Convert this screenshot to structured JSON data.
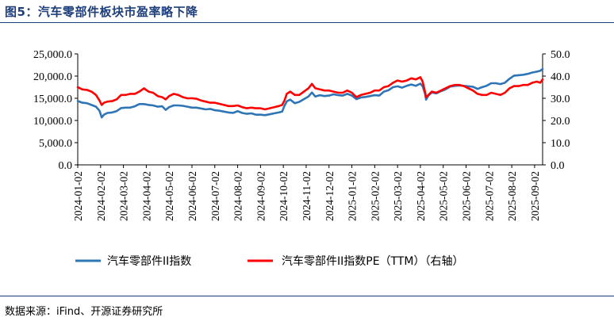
{
  "header": {
    "title": "图5：汽车零部件板块市盈率略下降"
  },
  "footer": {
    "source": "数据来源：iFind、开源证券研究所"
  },
  "chart_data": {
    "type": "line",
    "title": "图5：汽车零部件板块市盈率略下降",
    "xlabel": "",
    "ylabel": "",
    "y_left_range": [
      0,
      25000
    ],
    "y_right_range": [
      0,
      50
    ],
    "y_left_ticks": [
      "25,000.0",
      "20,000.0",
      "15,000.0",
      "10,000.0",
      "5,000.0",
      "0.0"
    ],
    "y_left_tick_values": [
      25000,
      20000,
      15000,
      10000,
      5000,
      0
    ],
    "y_right_ticks": [
      "50.0",
      "40.0",
      "30.0",
      "20.0",
      "10.0",
      "0.0"
    ],
    "y_right_tick_values": [
      50,
      40,
      30,
      20,
      10,
      0
    ],
    "x_ticks": [
      "2024-01-02",
      "2024-02-02",
      "2024-03-02",
      "2024-04-02",
      "2024-05-02",
      "2024-06-02",
      "2024-07-02",
      "2024-08-02",
      "2024-09-02",
      "2024-10-02",
      "2024-11-02",
      "2024-12-02",
      "2025-01-02",
      "2025-02-02",
      "2025-03-02",
      "2025-04-02",
      "2025-05-02",
      "2025-06-02",
      "2025-07-02",
      "2025-08-02",
      "2025-09-02"
    ],
    "x_range_months": [
      0,
      20.35
    ],
    "legend_position": "bottom",
    "series": [
      {
        "name": "汽车零部件II指数",
        "axis": "left",
        "color": "#2e75b6",
        "points": [
          [
            0.0,
            14400
          ],
          [
            0.2,
            14000
          ],
          [
            0.4,
            13900
          ],
          [
            0.6,
            13500
          ],
          [
            0.8,
            13100
          ],
          [
            0.95,
            12200
          ],
          [
            1.05,
            10700
          ],
          [
            1.15,
            11300
          ],
          [
            1.3,
            11700
          ],
          [
            1.5,
            11800
          ],
          [
            1.7,
            12100
          ],
          [
            1.9,
            12800
          ],
          [
            2.1,
            12900
          ],
          [
            2.3,
            12900
          ],
          [
            2.5,
            13200
          ],
          [
            2.7,
            13700
          ],
          [
            2.9,
            13700
          ],
          [
            3.1,
            13500
          ],
          [
            3.3,
            13400
          ],
          [
            3.5,
            13100
          ],
          [
            3.7,
            13200
          ],
          [
            3.85,
            12400
          ],
          [
            4.0,
            13000
          ],
          [
            4.2,
            13400
          ],
          [
            4.4,
            13400
          ],
          [
            4.6,
            13300
          ],
          [
            4.8,
            13100
          ],
          [
            5.0,
            12900
          ],
          [
            5.2,
            12900
          ],
          [
            5.4,
            12700
          ],
          [
            5.6,
            12500
          ],
          [
            5.8,
            12600
          ],
          [
            6.0,
            12300
          ],
          [
            6.2,
            12200
          ],
          [
            6.4,
            12000
          ],
          [
            6.6,
            11800
          ],
          [
            6.8,
            11700
          ],
          [
            7.0,
            12100
          ],
          [
            7.2,
            11700
          ],
          [
            7.4,
            11500
          ],
          [
            7.6,
            11600
          ],
          [
            7.8,
            11300
          ],
          [
            8.0,
            11300
          ],
          [
            8.2,
            11200
          ],
          [
            8.4,
            11400
          ],
          [
            8.6,
            11600
          ],
          [
            8.8,
            11800
          ],
          [
            8.95,
            12000
          ],
          [
            9.05,
            13300
          ],
          [
            9.15,
            14300
          ],
          [
            9.3,
            14700
          ],
          [
            9.5,
            13900
          ],
          [
            9.7,
            14200
          ],
          [
            9.9,
            14800
          ],
          [
            10.1,
            15400
          ],
          [
            10.25,
            16300
          ],
          [
            10.4,
            15400
          ],
          [
            10.6,
            15700
          ],
          [
            10.8,
            15500
          ],
          [
            11.0,
            15600
          ],
          [
            11.2,
            15900
          ],
          [
            11.4,
            15700
          ],
          [
            11.6,
            15600
          ],
          [
            11.8,
            16000
          ],
          [
            12.0,
            15600
          ],
          [
            12.2,
            14800
          ],
          [
            12.4,
            15200
          ],
          [
            12.6,
            15300
          ],
          [
            12.8,
            15500
          ],
          [
            13.0,
            15700
          ],
          [
            13.2,
            15600
          ],
          [
            13.4,
            16500
          ],
          [
            13.6,
            16800
          ],
          [
            13.8,
            17500
          ],
          [
            14.0,
            17700
          ],
          [
            14.2,
            17400
          ],
          [
            14.4,
            17800
          ],
          [
            14.6,
            18100
          ],
          [
            14.8,
            17800
          ],
          [
            15.0,
            18300
          ],
          [
            15.1,
            17700
          ],
          [
            15.2,
            16100
          ],
          [
            15.25,
            14700
          ],
          [
            15.35,
            15600
          ],
          [
            15.5,
            16300
          ],
          [
            15.7,
            16100
          ],
          [
            15.9,
            16600
          ],
          [
            16.1,
            17000
          ],
          [
            16.3,
            17600
          ],
          [
            16.5,
            17800
          ],
          [
            16.7,
            17900
          ],
          [
            16.9,
            17800
          ],
          [
            17.1,
            17700
          ],
          [
            17.3,
            17600
          ],
          [
            17.5,
            17100
          ],
          [
            17.7,
            17500
          ],
          [
            17.9,
            17800
          ],
          [
            18.1,
            18400
          ],
          [
            18.3,
            18400
          ],
          [
            18.5,
            18200
          ],
          [
            18.7,
            18500
          ],
          [
            18.9,
            19400
          ],
          [
            19.1,
            20100
          ],
          [
            19.3,
            20200
          ],
          [
            19.5,
            20300
          ],
          [
            19.7,
            20500
          ],
          [
            19.9,
            20800
          ],
          [
            20.1,
            21000
          ],
          [
            20.25,
            21200
          ],
          [
            20.35,
            21600
          ]
        ]
      },
      {
        "name": "汽车零部件II指数PE（TTM）（右轴）",
        "axis": "right",
        "color": "#ff0000",
        "points": [
          [
            0.0,
            35.0
          ],
          [
            0.2,
            34.0
          ],
          [
            0.4,
            33.8
          ],
          [
            0.6,
            33.0
          ],
          [
            0.8,
            31.5
          ],
          [
            0.95,
            29.0
          ],
          [
            1.05,
            27.0
          ],
          [
            1.15,
            28.0
          ],
          [
            1.3,
            28.5
          ],
          [
            1.5,
            28.7
          ],
          [
            1.7,
            29.5
          ],
          [
            1.9,
            31.5
          ],
          [
            2.1,
            31.5
          ],
          [
            2.3,
            32.0
          ],
          [
            2.5,
            32.0
          ],
          [
            2.7,
            33.0
          ],
          [
            2.9,
            34.5
          ],
          [
            3.1,
            33.0
          ],
          [
            3.3,
            32.5
          ],
          [
            3.5,
            31.0
          ],
          [
            3.7,
            30.5
          ],
          [
            3.85,
            29.5
          ],
          [
            4.0,
            31.0
          ],
          [
            4.2,
            32.0
          ],
          [
            4.4,
            31.5
          ],
          [
            4.6,
            30.5
          ],
          [
            4.8,
            30.0
          ],
          [
            5.0,
            30.0
          ],
          [
            5.2,
            29.8
          ],
          [
            5.4,
            29.0
          ],
          [
            5.6,
            28.5
          ],
          [
            5.8,
            28.0
          ],
          [
            6.0,
            28.0
          ],
          [
            6.2,
            27.5
          ],
          [
            6.4,
            27.0
          ],
          [
            6.6,
            26.5
          ],
          [
            6.8,
            26.5
          ],
          [
            7.0,
            26.8
          ],
          [
            7.2,
            26.0
          ],
          [
            7.4,
            25.5
          ],
          [
            7.6,
            25.8
          ],
          [
            7.8,
            25.5
          ],
          [
            8.0,
            25.5
          ],
          [
            8.2,
            25.0
          ],
          [
            8.4,
            25.5
          ],
          [
            8.6,
            26.0
          ],
          [
            8.8,
            26.5
          ],
          [
            8.95,
            27.0
          ],
          [
            9.05,
            29.0
          ],
          [
            9.15,
            32.0
          ],
          [
            9.3,
            33.0
          ],
          [
            9.5,
            31.5
          ],
          [
            9.7,
            31.5
          ],
          [
            9.9,
            33.0
          ],
          [
            10.1,
            34.5
          ],
          [
            10.25,
            36.5
          ],
          [
            10.4,
            34.5
          ],
          [
            10.6,
            34.0
          ],
          [
            10.8,
            33.5
          ],
          [
            11.0,
            33.5
          ],
          [
            11.2,
            33.0
          ],
          [
            11.4,
            32.5
          ],
          [
            11.6,
            32.5
          ],
          [
            11.8,
            33.5
          ],
          [
            12.0,
            32.5
          ],
          [
            12.2,
            30.5
          ],
          [
            12.4,
            31.5
          ],
          [
            12.6,
            32.0
          ],
          [
            12.8,
            32.5
          ],
          [
            13.0,
            33.5
          ],
          [
            13.2,
            33.5
          ],
          [
            13.4,
            35.0
          ],
          [
            13.6,
            35.5
          ],
          [
            13.8,
            37.0
          ],
          [
            14.0,
            38.0
          ],
          [
            14.2,
            37.5
          ],
          [
            14.4,
            38.0
          ],
          [
            14.6,
            39.0
          ],
          [
            14.8,
            38.5
          ],
          [
            15.0,
            39.5
          ],
          [
            15.1,
            37.5
          ],
          [
            15.2,
            33.0
          ],
          [
            15.25,
            30.5
          ],
          [
            15.35,
            31.5
          ],
          [
            15.5,
            33.0
          ],
          [
            15.7,
            32.5
          ],
          [
            15.9,
            33.5
          ],
          [
            16.1,
            34.5
          ],
          [
            16.3,
            35.5
          ],
          [
            16.5,
            36.0
          ],
          [
            16.7,
            36.0
          ],
          [
            16.9,
            35.5
          ],
          [
            17.1,
            34.5
          ],
          [
            17.3,
            33.5
          ],
          [
            17.5,
            32.0
          ],
          [
            17.7,
            31.5
          ],
          [
            17.9,
            31.5
          ],
          [
            18.1,
            32.5
          ],
          [
            18.3,
            32.0
          ],
          [
            18.5,
            31.5
          ],
          [
            18.7,
            32.5
          ],
          [
            18.9,
            34.5
          ],
          [
            19.1,
            35.5
          ],
          [
            19.3,
            35.5
          ],
          [
            19.5,
            36.0
          ],
          [
            19.7,
            36.0
          ],
          [
            19.9,
            37.0
          ],
          [
            20.1,
            37.5
          ],
          [
            20.25,
            37.0
          ],
          [
            20.35,
            38.5
          ]
        ]
      }
    ]
  }
}
